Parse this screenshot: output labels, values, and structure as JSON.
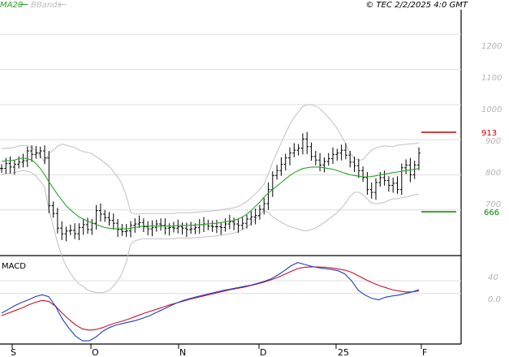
{
  "legend": {
    "ma": "MA20",
    "bands": "BBands"
  },
  "copyright": "© TEC 2/2/2025 4:0 GMT",
  "colors": {
    "ma": "#2ca02c",
    "bands": "#c0c0c0",
    "price": "#000000",
    "macd": "#1f3fbf",
    "signal": "#c8102e",
    "resistance": "#cc0000",
    "support": "#008800"
  },
  "chart_data": [
    {
      "type": "ohlc",
      "y_ticks": [
        "1200",
        "1100",
        "1000",
        "900",
        "800",
        "700"
      ],
      "x_ticks": [
        "S",
        "O",
        "N",
        "D",
        "25",
        "F"
      ],
      "ylim": [
        570,
        1270
      ],
      "series": {
        "close": [
          818,
          832,
          822,
          830,
          836,
          840,
          868,
          858,
          862,
          868,
          848,
          712,
          690,
          648,
          632,
          640,
          642,
          632,
          650,
          658,
          644,
          662,
          698,
          688,
          678,
          670,
          662,
          644,
          638,
          640,
          656,
          660,
          664,
          652,
          646,
          650,
          660,
          656,
          648,
          650,
          648,
          652,
          648,
          644,
          646,
          650,
          658,
          660,
          654,
          652,
          652,
          650,
          660,
          666,
          660,
          656,
          662,
          674,
          680,
          684,
          702,
          718,
          758,
          798,
          812,
          830,
          848,
          862,
          870,
          876,
          902,
          880,
          852,
          842,
          828,
          838,
          846,
          858,
          862,
          870,
          856,
          836,
          826,
          812,
          792,
          758,
          750,
          778,
          792,
          784,
          770,
          776,
          758,
          820,
          828,
          800,
          828,
          862
        ],
        "ma20": [
          838,
          840,
          840,
          842,
          846,
          848,
          846,
          842,
          832,
          818,
          800,
          780,
          762,
          744,
          728,
          712,
          700,
          690,
          680,
          674,
          668,
          664,
          658,
          654,
          650,
          648,
          646,
          646,
          646,
          646,
          648,
          650,
          652,
          654,
          654,
          654,
          654,
          654,
          654,
          654,
          654,
          656,
          656,
          656,
          656,
          657,
          658,
          659,
          660,
          661,
          662,
          664,
          666,
          668,
          670,
          674,
          680,
          688,
          698,
          710,
          722,
          736,
          748,
          758,
          768,
          778,
          788,
          798,
          806,
          812,
          818,
          820,
          822,
          822,
          822,
          820,
          818,
          816,
          812,
          808,
          804,
          800,
          798,
          796,
          794,
          794,
          795,
          797,
          800,
          802,
          804,
          806,
          808,
          810,
          812,
          814,
          816,
          818
        ]
      }
    },
    {
      "type": "line",
      "title": "MACD",
      "y_ticks": [
        "40",
        "0.0"
      ],
      "ylim": [
        -160,
        120
      ],
      "series": {
        "macd": [
          -62,
          -50,
          -38,
          -28,
          -20,
          -10,
          -4,
          -10,
          -40,
          -80,
          -110,
          -135,
          -150,
          -150,
          -138,
          -120,
          -108,
          -100,
          -95,
          -90,
          -85,
          -78,
          -70,
          -60,
          -50,
          -40,
          -30,
          -22,
          -16,
          -10,
          -5,
          0,
          5,
          10,
          14,
          18,
          22,
          26,
          32,
          38,
          46,
          58,
          72,
          88,
          98,
          92,
          86,
          82,
          79,
          76,
          72,
          62,
          40,
          10,
          -5,
          -15,
          -20,
          -12,
          -8,
          -5,
          0,
          5,
          12
        ],
        "signal": [
          -70,
          -62,
          -54,
          -46,
          -36,
          -28,
          -22,
          -25,
          -40,
          -62,
          -82,
          -100,
          -112,
          -116,
          -114,
          -108,
          -100,
          -93,
          -87,
          -80,
          -72,
          -64,
          -57,
          -50,
          -43,
          -36,
          -30,
          -24,
          -18,
          -13,
          -8,
          -3,
          2,
          7,
          12,
          16,
          20,
          25,
          30,
          36,
          43,
          51,
          60,
          70,
          79,
          83,
          84,
          84,
          83,
          81,
          78,
          74,
          67,
          56,
          45,
          35,
          26,
          19,
          12,
          8,
          5,
          5,
          8
        ]
      }
    }
  ],
  "levels": {
    "resistance": "913",
    "support": "666"
  }
}
